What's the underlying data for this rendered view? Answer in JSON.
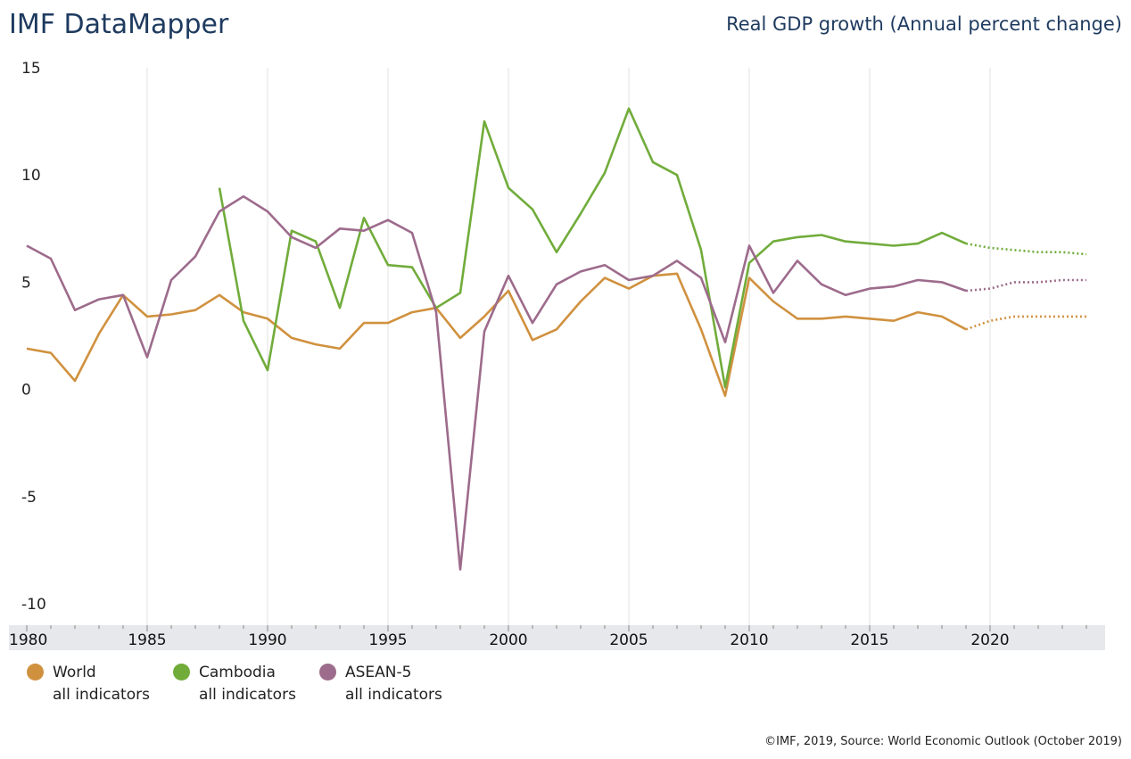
{
  "header": {
    "app_title": "IMF DataMapper",
    "chart_title": "Real GDP growth (Annual percent change)"
  },
  "footer": {
    "source": "©IMF, 2019, Source: World Economic Outlook (October 2019)"
  },
  "chart_data": {
    "type": "line",
    "title": "Real GDP growth (Annual percent change)",
    "ylim": [
      -10,
      15
    ],
    "yticks": [
      15,
      10,
      5,
      0,
      -5,
      -10
    ],
    "xlim": [
      1980,
      2024
    ],
    "xticks": [
      1980,
      1985,
      1990,
      1995,
      2000,
      2005,
      2010,
      2015,
      2020
    ],
    "projection_start": 2019,
    "series": [
      {
        "name": "World",
        "sublabel": "all indicators",
        "color": "#d0913f",
        "start_year": 1980,
        "values": [
          1.9,
          1.7,
          0.4,
          2.6,
          4.4,
          3.4,
          3.5,
          3.7,
          4.4,
          3.6,
          3.3,
          2.4,
          2.1,
          1.9,
          3.1,
          3.1,
          3.6,
          3.8,
          2.4,
          3.4,
          4.6,
          2.3,
          2.8,
          4.1,
          5.2,
          4.7,
          5.3,
          5.4,
          2.8,
          -0.3,
          5.2,
          4.1,
          3.3,
          3.3,
          3.4,
          3.3,
          3.2,
          3.6,
          3.4,
          2.8,
          3.2,
          3.4,
          3.4,
          3.4,
          3.4
        ]
      },
      {
        "name": "Cambodia",
        "sublabel": "all indicators",
        "color": "#71ac3b",
        "start_year": 1988,
        "values": [
          9.4,
          3.2,
          0.9,
          7.4,
          6.9,
          3.8,
          8.0,
          5.8,
          5.7,
          3.8,
          4.5,
          12.5,
          9.4,
          8.4,
          6.4,
          8.2,
          10.1,
          13.1,
          10.6,
          10.0,
          6.5,
          0.1,
          5.9,
          6.9,
          7.1,
          7.2,
          6.9,
          6.8,
          6.7,
          6.8,
          7.3,
          6.8,
          6.6,
          6.5,
          6.4,
          6.4,
          6.3
        ]
      },
      {
        "name": "ASEAN-5",
        "sublabel": "all indicators",
        "color": "#9d6b8c",
        "start_year": 1980,
        "values": [
          6.7,
          6.1,
          3.7,
          4.2,
          4.4,
          1.5,
          5.1,
          6.2,
          8.3,
          9.0,
          8.3,
          7.1,
          6.6,
          7.5,
          7.4,
          7.9,
          7.3,
          3.6,
          -8.4,
          2.7,
          5.3,
          3.1,
          4.9,
          5.5,
          5.8,
          5.1,
          5.3,
          6.0,
          5.2,
          2.2,
          6.7,
          4.5,
          6.0,
          4.9,
          4.4,
          4.7,
          4.8,
          5.1,
          5.0,
          4.6,
          4.7,
          5.0,
          5.0,
          5.1,
          5.1
        ]
      }
    ]
  }
}
